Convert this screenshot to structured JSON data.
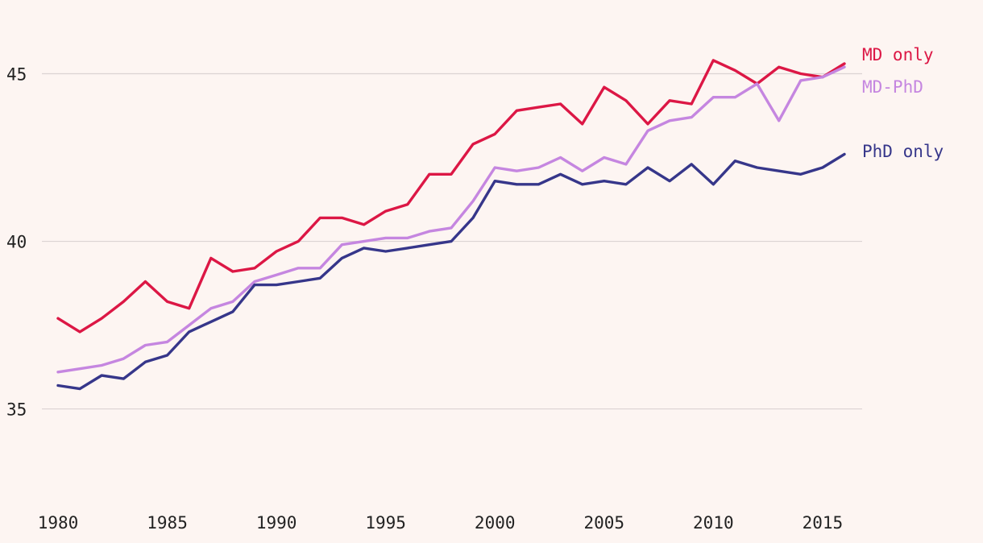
{
  "colors": {
    "background": "#fdf5f2",
    "grid": "#dcd3d3",
    "tick_text": "#222222"
  },
  "chart_data": {
    "type": "line",
    "title": "",
    "xlabel": "",
    "ylabel": "",
    "xlim": [
      1980,
      2016
    ],
    "ylim": [
      31,
      47.2
    ],
    "grid": true,
    "legend": "direct labels at right end of lines",
    "x_ticks": [
      1980,
      1985,
      1990,
      1995,
      2000,
      2005,
      2010,
      2015
    ],
    "y_ticks": [
      35,
      40,
      45
    ],
    "x": [
      1980,
      1981,
      1982,
      1983,
      1984,
      1985,
      1986,
      1987,
      1988,
      1989,
      1990,
      1991,
      1992,
      1993,
      1994,
      1995,
      1996,
      1997,
      1998,
      1999,
      2000,
      2001,
      2002,
      2003,
      2004,
      2005,
      2006,
      2007,
      2008,
      2009,
      2010,
      2011,
      2012,
      2013,
      2014,
      2015,
      2016
    ],
    "series": [
      {
        "name": "MD only",
        "color": "#dc1745",
        "values": [
          37.7,
          37.3,
          37.7,
          38.2,
          38.8,
          38.2,
          38.0,
          39.5,
          39.1,
          39.2,
          39.7,
          40.0,
          40.7,
          40.7,
          40.5,
          40.9,
          41.1,
          42.0,
          42.0,
          42.9,
          43.2,
          43.9,
          44.0,
          44.1,
          43.5,
          44.6,
          44.2,
          43.5,
          44.2,
          44.1,
          45.4,
          45.1,
          44.7,
          45.2,
          45.0,
          44.9,
          45.3
        ]
      },
      {
        "name": "MD-PhD",
        "color": "#c586e0",
        "values": [
          36.1,
          36.2,
          36.3,
          36.5,
          36.9,
          37.0,
          37.5,
          38.0,
          38.2,
          38.8,
          39.0,
          39.2,
          39.2,
          39.9,
          40.0,
          40.1,
          40.1,
          40.3,
          40.4,
          41.2,
          42.2,
          42.1,
          42.2,
          42.5,
          42.1,
          42.5,
          42.3,
          43.3,
          43.6,
          43.7,
          44.3,
          44.3,
          44.7,
          43.6,
          44.8,
          44.9,
          45.2
        ]
      },
      {
        "name": "PhD only",
        "color": "#36368a",
        "values": [
          35.7,
          35.6,
          36.0,
          35.9,
          36.4,
          36.6,
          37.3,
          37.6,
          37.9,
          38.7,
          38.7,
          38.8,
          38.9,
          39.5,
          39.8,
          39.7,
          39.8,
          39.9,
          40.0,
          40.7,
          41.8,
          41.7,
          41.7,
          42.0,
          41.7,
          41.8,
          41.7,
          42.2,
          41.8,
          42.3,
          41.7,
          42.4,
          42.2,
          42.1,
          42.0,
          42.2,
          42.6
        ]
      }
    ]
  }
}
